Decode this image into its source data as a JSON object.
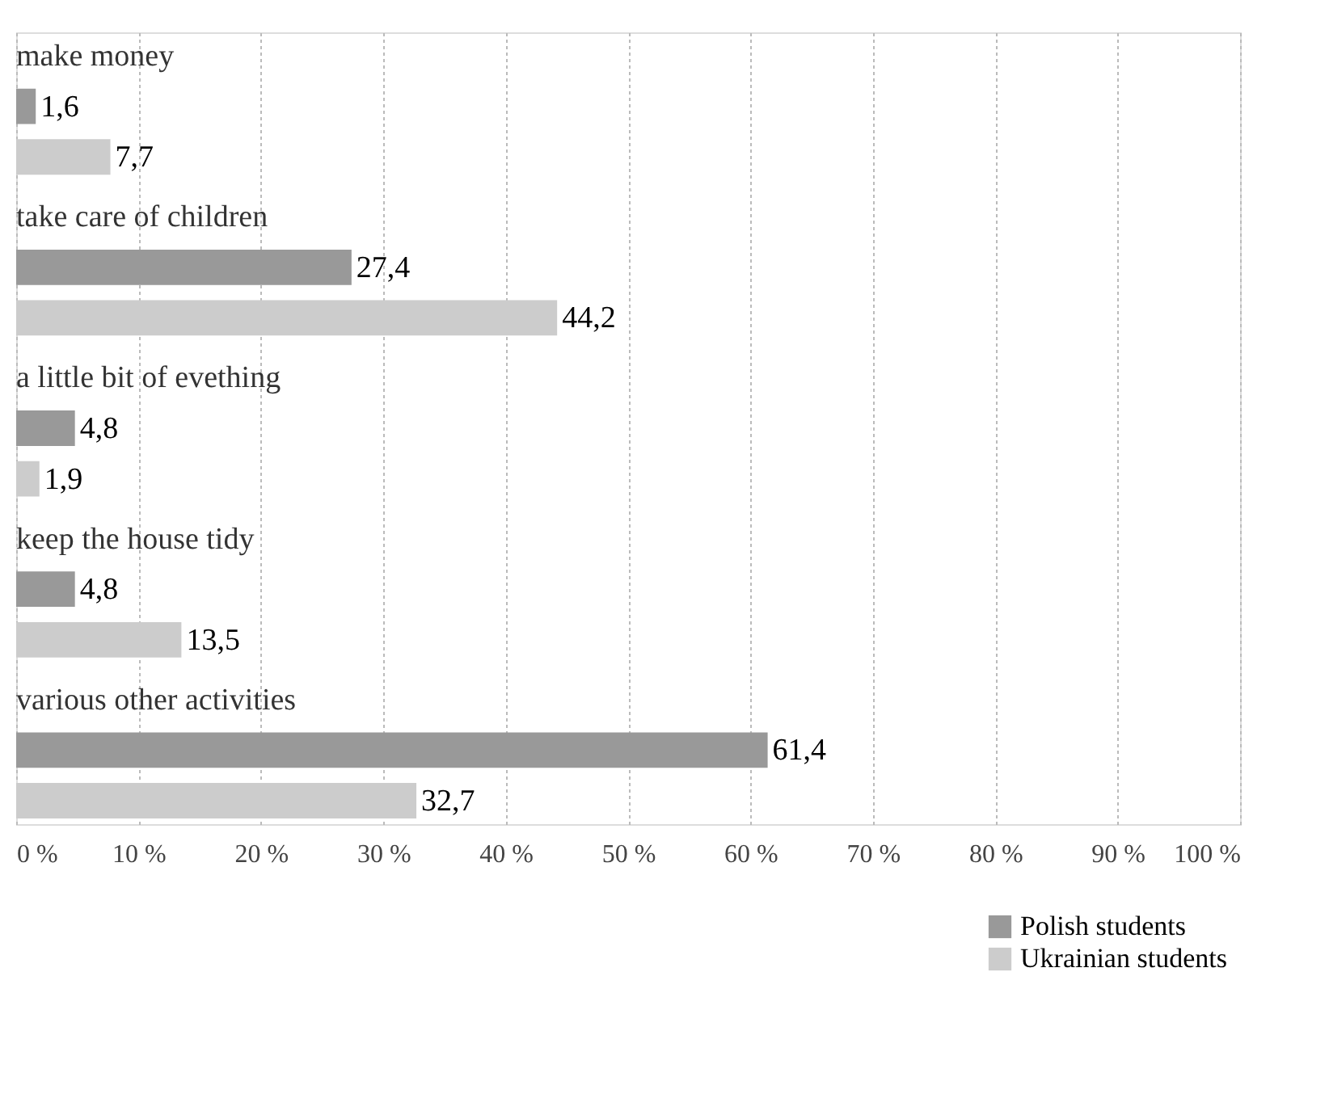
{
  "chart_data": {
    "type": "bar",
    "orientation": "horizontal",
    "categories": [
      "make money",
      "take care of children",
      "a little bit of evething",
      "keep the house tidy",
      "various other activities"
    ],
    "series": [
      {
        "name": "Polish students",
        "color": "#999999",
        "values": [
          1.6,
          27.4,
          4.8,
          4.8,
          61.4
        ],
        "value_labels": [
          "1,6",
          "27,4",
          "4,8",
          "4,8",
          "61,4"
        ]
      },
      {
        "name": "Ukrainian students",
        "color": "#cccccc",
        "values": [
          7.7,
          44.2,
          1.9,
          13.5,
          32.7
        ],
        "value_labels": [
          "7,7",
          "44,2",
          "1,9",
          "13,5",
          "32,7"
        ]
      }
    ],
    "xlim": [
      0,
      100
    ],
    "xticks": [
      {
        "value": 0,
        "label": "0 %"
      },
      {
        "value": 10,
        "label": "10 %"
      },
      {
        "value": 20,
        "label": "20 %"
      },
      {
        "value": 30,
        "label": "30 %"
      },
      {
        "value": 40,
        "label": "40 %"
      },
      {
        "value": 50,
        "label": "50 %"
      },
      {
        "value": 60,
        "label": "60 %"
      },
      {
        "value": 70,
        "label": "70 %"
      },
      {
        "value": 80,
        "label": "80 %"
      },
      {
        "value": 90,
        "label": "90 %"
      },
      {
        "value": 100,
        "label": "100 %"
      }
    ],
    "grid": "x",
    "legend": "bottom right"
  }
}
